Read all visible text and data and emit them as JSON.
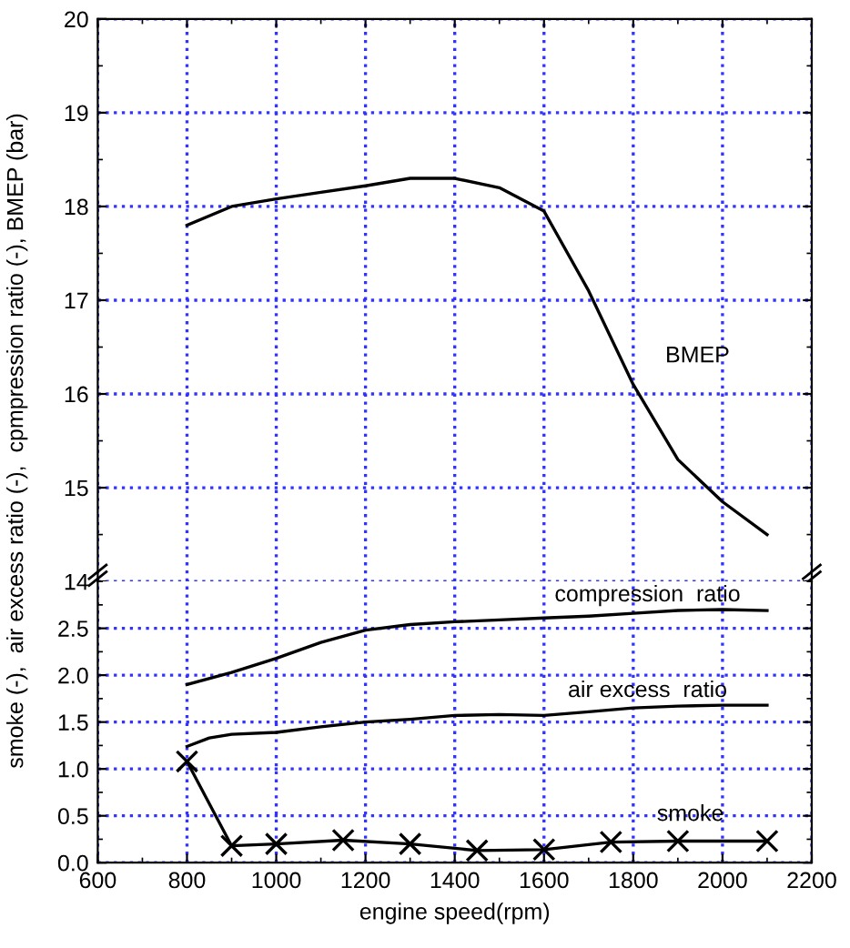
{
  "chart_data": [
    {
      "type": "line",
      "xlim": [
        600,
        2200
      ],
      "xticks": [
        600,
        800,
        1000,
        1200,
        1400,
        1600,
        1800,
        2000,
        2200
      ],
      "ylim": [
        14,
        20
      ],
      "yticks": [
        14,
        15,
        16,
        17,
        18,
        19,
        20
      ],
      "grid": true,
      "tick_labels": "y",
      "series": [
        {
          "color": "#000000",
          "marker": "none",
          "x": [
            800,
            900,
            1000,
            1100,
            1200,
            1300,
            1400,
            1500,
            1600,
            1700,
            1800,
            1900,
            2000,
            2100
          ],
          "values": [
            17.8,
            18.0,
            18.08,
            18.15,
            18.22,
            18.3,
            18.3,
            18.2,
            17.95,
            17.1,
            16.1,
            15.3,
            14.85,
            14.5
          ]
        }
      ],
      "annotations": [
        "BMEP"
      ]
    },
    {
      "type": "line",
      "xlim": [
        600,
        2200
      ],
      "xticks": [
        600,
        800,
        1000,
        1200,
        1400,
        1600,
        1800,
        2000,
        2200
      ],
      "ylim": [
        0,
        3.0
      ],
      "yticks": [
        {
          "value": 0,
          "label": "0.0"
        },
        0.5,
        {
          "value": 1,
          "label": "1.0"
        },
        1.5,
        {
          "value": 2,
          "label": "2.0"
        },
        2.5
      ],
      "grid": true,
      "xlabel": "engine speed(rpm)",
      "ylabel": "smoke (-),  air excess ratio (-),  cpmpression ratio (-), BMEP (bar)",
      "series": [
        {
          "color": "#000000",
          "marker": "none",
          "x": [
            800,
            900,
            1000,
            1100,
            1200,
            1300,
            1400,
            1500,
            1600,
            1700,
            1800,
            1900,
            2000,
            2100
          ],
          "values": [
            1.9,
            2.03,
            2.18,
            2.35,
            2.48,
            2.54,
            2.57,
            2.59,
            2.61,
            2.63,
            2.66,
            2.69,
            2.7,
            2.69
          ]
        },
        {
          "color": "#000000",
          "marker": "none",
          "x": [
            800,
            850,
            900,
            1000,
            1100,
            1200,
            1300,
            1400,
            1500,
            1600,
            1700,
            1800,
            1900,
            2000,
            2100
          ],
          "values": [
            1.24,
            1.33,
            1.37,
            1.39,
            1.45,
            1.5,
            1.53,
            1.57,
            1.58,
            1.57,
            1.61,
            1.65,
            1.67,
            1.68,
            1.68
          ]
        },
        {
          "color": "#000000",
          "marker": "cross",
          "x": [
            800,
            900,
            1000,
            1150,
            1300,
            1450,
            1600,
            1750,
            1900,
            2100
          ],
          "values": [
            1.08,
            0.18,
            0.2,
            0.24,
            0.2,
            0.13,
            0.14,
            0.22,
            0.23,
            0.23
          ]
        }
      ],
      "annotations": [
        "compression  ratio",
        "air excess  ratio",
        "smoke"
      ]
    }
  ]
}
